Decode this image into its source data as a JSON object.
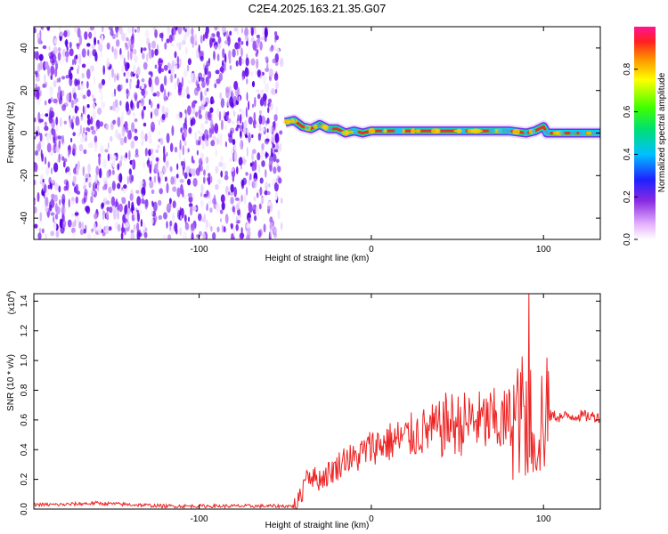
{
  "title": "C2E4.2025.163.21.35.G07",
  "colors": {
    "snr_line": "#ee2222",
    "track": "#e03030"
  },
  "chart_data": [
    {
      "type": "heatmap",
      "title": "C2E4.2025.163.21.35.G07",
      "xlabel": "Height of straight line (km)",
      "ylabel": "Frequency (Hz)",
      "xlim": [
        -196,
        133
      ],
      "ylim": [
        -50,
        50
      ],
      "xticks": [
        -100,
        0,
        100
      ],
      "yticks": [
        -40,
        -20,
        0,
        20,
        40
      ],
      "grid": false,
      "noise_region_x": [
        -196,
        -52
      ],
      "track_x": [
        -50,
        133
      ],
      "track_frequency": [
        [
          -50,
          5
        ],
        [
          -45,
          6
        ],
        [
          -40,
          3
        ],
        [
          -35,
          2
        ],
        [
          -30,
          4
        ],
        [
          -25,
          2
        ],
        [
          -20,
          2
        ],
        [
          -15,
          0
        ],
        [
          -10,
          1
        ],
        [
          -5,
          0
        ],
        [
          0,
          1
        ],
        [
          10,
          1
        ],
        [
          20,
          1
        ],
        [
          40,
          1
        ],
        [
          60,
          1
        ],
        [
          80,
          1
        ],
        [
          90,
          0
        ],
        [
          95,
          1
        ],
        [
          100,
          3
        ],
        [
          102,
          0
        ],
        [
          133,
          0
        ]
      ],
      "colorbar": {
        "label": "Normalized spectral amplitude",
        "range": [
          0.0,
          1.0
        ],
        "ticks": [
          "0.0",
          "0.2",
          "0.4",
          "0.6",
          "0.8"
        ],
        "tick_values": [
          0.0,
          0.2,
          0.4,
          0.6,
          0.8
        ]
      }
    },
    {
      "type": "line",
      "xlabel": "Height of straight line (km)",
      "ylabel": "SNR (10 * v/v)",
      "multiplier": "(x10",
      "multiplier_exp": "4",
      "xlim": [
        -196,
        133
      ],
      "ylim": [
        0.0,
        1.45
      ],
      "xticks": [
        -100,
        0,
        100
      ],
      "yticks": [
        0.0,
        0.2,
        0.4,
        0.6,
        0.8,
        1.0,
        1.2,
        1.4
      ],
      "ytick_labels": [
        "0.0",
        "0.2",
        "0.4",
        "0.6",
        "0.8",
        "1.0",
        "1.2",
        "1.4"
      ],
      "grid": false,
      "series": [
        {
          "x": [
            -196,
            -180,
            -160,
            -140,
            -120,
            -100,
            -80,
            -60,
            -45,
            -42,
            -40,
            -38,
            -35,
            -30,
            -25,
            -20,
            -15,
            -10,
            -5,
            0,
            10,
            20,
            30,
            40,
            45,
            50,
            55,
            60,
            65,
            70,
            75,
            80,
            85,
            88,
            90,
            92,
            94,
            96,
            98,
            100,
            102,
            105,
            110,
            120,
            133
          ],
          "y": [
            0.03,
            0.03,
            0.04,
            0.03,
            0.02,
            0.02,
            0.02,
            0.02,
            0.02,
            0.06,
            0.12,
            0.25,
            0.22,
            0.2,
            0.24,
            0.28,
            0.35,
            0.33,
            0.38,
            0.42,
            0.45,
            0.48,
            0.52,
            0.55,
            0.58,
            0.57,
            0.58,
            0.6,
            0.58,
            0.6,
            0.57,
            0.6,
            0.62,
            0.65,
            0.6,
            0.58,
            0.62,
            0.55,
            0.6,
            0.62,
            0.62,
            0.63,
            0.62,
            0.63,
            0.62
          ]
        }
      ]
    }
  ]
}
